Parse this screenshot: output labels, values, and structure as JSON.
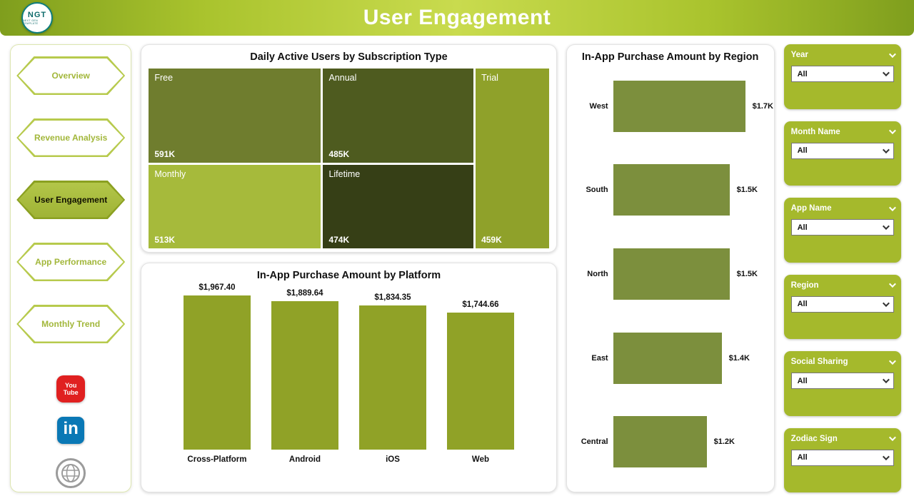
{
  "header": {
    "title": "User Engagement",
    "logo_text": "NGT",
    "logo_subtext": "NEXT GEN TEMPLATE"
  },
  "sidebar": {
    "items": [
      {
        "label": "Overview",
        "active": false
      },
      {
        "label": "Revenue Analysis",
        "active": false
      },
      {
        "label": "User Engagement",
        "active": true
      },
      {
        "label": "App Performance",
        "active": false
      },
      {
        "label": "Monthly Trend",
        "active": false
      }
    ],
    "social": {
      "youtube_line1": "You",
      "youtube_line2": "Tube",
      "linkedin_text": "in"
    }
  },
  "chart_data": [
    {
      "type": "treemap",
      "title": "Daily Active Users by Subscription Type",
      "tiles": [
        {
          "label": "Free",
          "value": 591,
          "value_label": "591K",
          "color": "#6f7d2e"
        },
        {
          "label": "Annual",
          "value": 485,
          "value_label": "485K",
          "color": "#4e5b1f"
        },
        {
          "label": "Trial",
          "value": 459,
          "value_label": "459K",
          "color": "#8fa12a"
        },
        {
          "label": "Monthly",
          "value": 513,
          "value_label": "513K",
          "color": "#a6ba3b"
        },
        {
          "label": "Lifetime",
          "value": 474,
          "value_label": "474K",
          "color": "#363f16"
        }
      ]
    },
    {
      "type": "bar",
      "title": "In-App Purchase Amount by Platform",
      "categories": [
        "Cross-Platform",
        "Android",
        "iOS",
        "Web"
      ],
      "values": [
        1967.4,
        1889.64,
        1834.35,
        1744.66
      ],
      "value_labels": [
        "$1,967.40",
        "$1,889.64",
        "$1,834.35",
        "$1,744.66"
      ],
      "ylim": [
        0,
        2000
      ],
      "bar_color": "#90a227"
    },
    {
      "type": "bar-horizontal",
      "title": "In-App Purchase Amount by Region",
      "categories": [
        "West",
        "South",
        "North",
        "East",
        "Central"
      ],
      "values": [
        1700,
        1500,
        1500,
        1400,
        1200
      ],
      "value_labels": [
        "$1.7K",
        "$1.5K",
        "$1.5K",
        "$1.4K",
        "$1.2K"
      ],
      "bar_color": "#7c8f3d"
    }
  ],
  "filters": [
    {
      "label": "Year",
      "value": "All"
    },
    {
      "label": "Month Name",
      "value": "All"
    },
    {
      "label": "App Name",
      "value": "All"
    },
    {
      "label": "Region",
      "value": "All"
    },
    {
      "label": "Social Sharing",
      "value": "All"
    },
    {
      "label": "Zodiac Sign",
      "value": "All"
    }
  ],
  "colors": {
    "header_gradient_mid": "#c9db4e",
    "header_gradient_edge": "#7f9e1d",
    "slicer_bg": "#a5b92c",
    "nav_accent": "#a2b73a"
  }
}
